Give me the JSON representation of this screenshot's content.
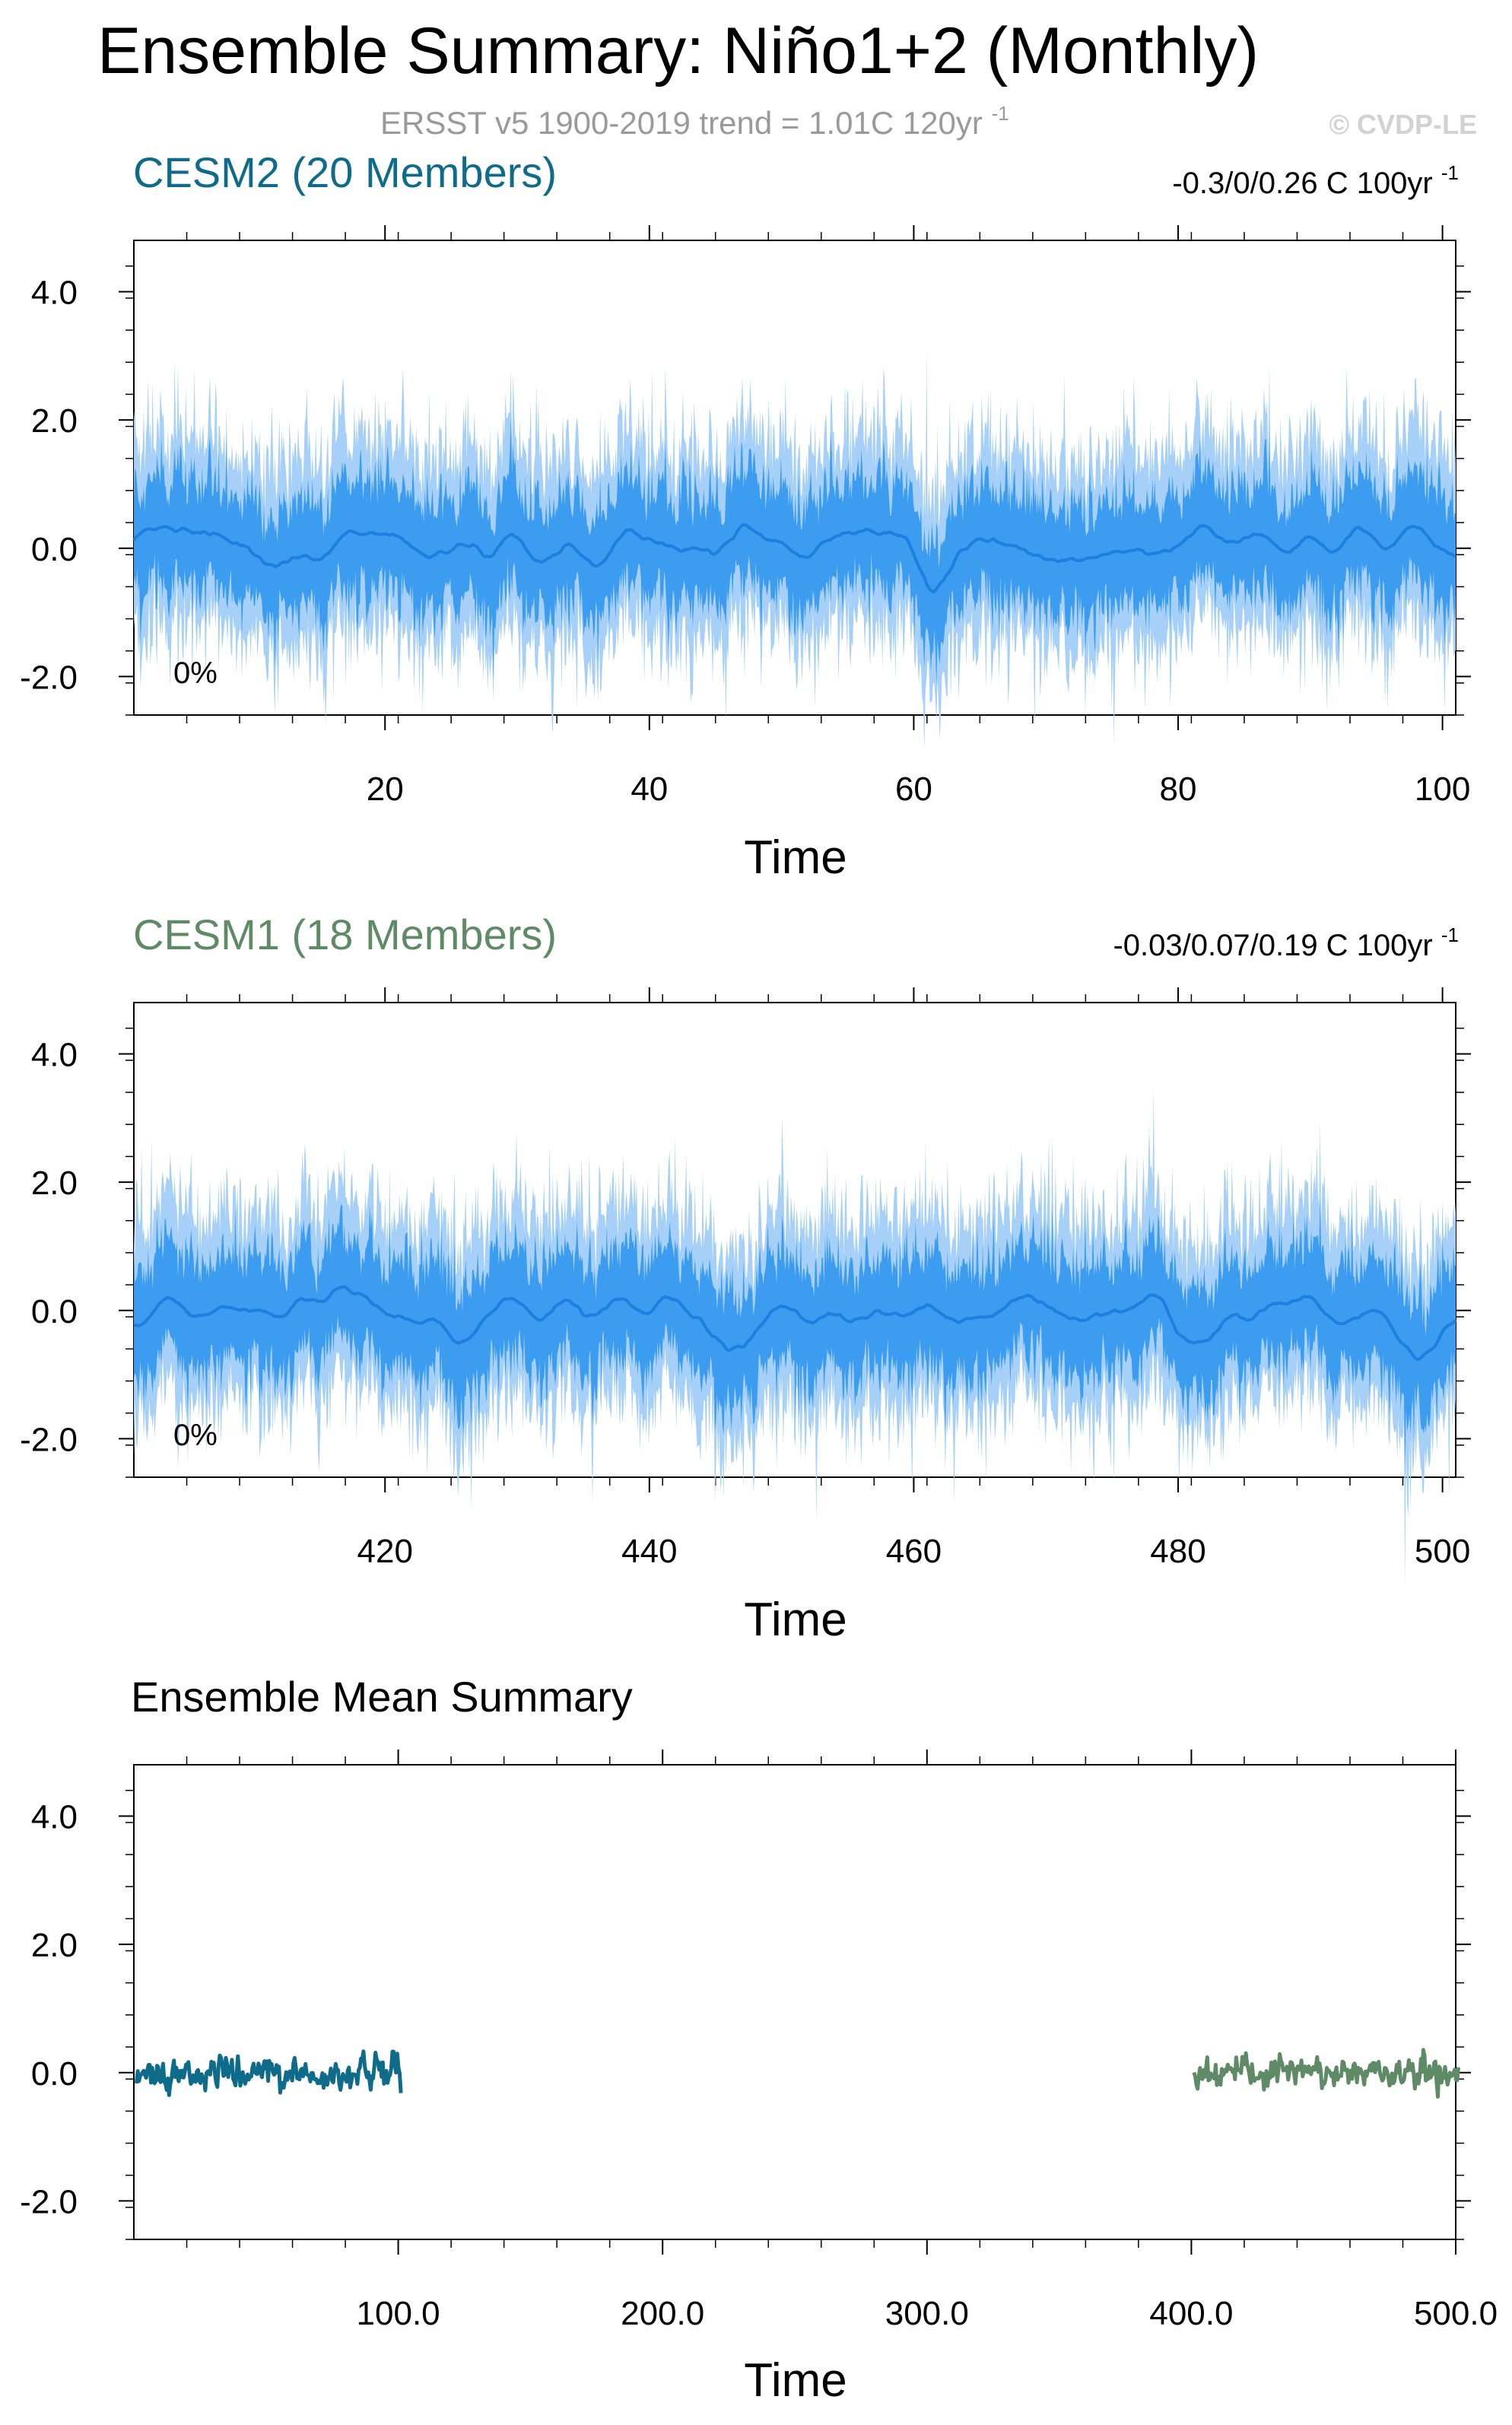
{
  "figure": {
    "title": "Ensemble Summary: Niño1+2 (Monthly)",
    "subtitle_main": "ERSST v5 1900-2019 trend = 1.01C 120yr",
    "subtitle_sup": "-1",
    "watermark": "© CVDP-LE"
  },
  "colors": {
    "band_outer": "#a6d0f7",
    "band_inner": "#3b9cf0",
    "mean_line": "#1e7fe0",
    "cesm2": "#0e6b8a",
    "cesm1": "#5f8a66",
    "axis": "#000000",
    "subtitle": "#9a9a9a",
    "watermark": "#d2d2d2"
  },
  "panels": {
    "p1": {
      "title": "CESM2 (20 Members)",
      "trend_main": "-0.3/0/0.26 C 100yr",
      "trend_sup": "-1",
      "percent": "0%",
      "xlabel": "Time"
    },
    "p2": {
      "title": "CESM1 (18 Members)",
      "trend_main": "-0.03/0.07/0.19 C 100yr",
      "trend_sup": "-1",
      "percent": "0%",
      "xlabel": "Time"
    },
    "p3": {
      "title": "Ensemble Mean Summary",
      "xlabel": "Time"
    }
  },
  "chart_data": [
    {
      "type": "area",
      "title": "CESM2 (20 Members)",
      "xlabel": "Time",
      "ylabel": "",
      "xlim": [
        1,
        101
      ],
      "ylim": [
        -2.6,
        4.8
      ],
      "yticks": [
        "4.0",
        "2.0",
        "0.0",
        "-2.0"
      ],
      "xticks": [
        "20",
        "40",
        "60",
        "80",
        "100"
      ],
      "legend_text": [
        "-0.3/0/0.26 C 100yr-1",
        "0%"
      ],
      "series": [
        {
          "name": "CESM2 (20 Members)",
          "kind": "ensemble-range-and-mean",
          "note_values": "monthly values approx. within -2.5 to 3.1 C; mean near 0.0",
          "approx_max": 3.1,
          "approx_min": -2.5
        }
      ]
    },
    {
      "type": "area",
      "title": "CESM1 (18 Members)",
      "xlabel": "Time",
      "ylabel": "",
      "xlim": [
        401,
        501
      ],
      "ylim": [
        -2.6,
        4.8
      ],
      "yticks": [
        "4.0",
        "2.0",
        "0.0",
        "-2.0"
      ],
      "xticks": [
        "420",
        "440",
        "460",
        "480",
        "500"
      ],
      "legend_text": [
        "-0.03/0.07/0.19 C 100yr-1",
        "0%"
      ],
      "series": [
        {
          "name": "CESM1 (18 Members)",
          "kind": "ensemble-range-and-mean",
          "approx_max": 2.1,
          "approx_min": -1.9
        }
      ]
    },
    {
      "type": "line",
      "title": "Ensemble Mean Summary",
      "xlabel": "Time",
      "ylabel": "",
      "xlim": [
        0,
        500
      ],
      "ylim": [
        -2.6,
        4.8
      ],
      "yticks": [
        "4.0",
        "2.0",
        "0.0",
        "-2.0"
      ],
      "xticks": [
        "100.0",
        "200.0",
        "300.0",
        "400.0",
        "500.0"
      ],
      "series": [
        {
          "name": "CESM2 (20 Members)",
          "x_range": [
            1,
            101
          ],
          "approx_range": [
            -0.5,
            0.55
          ]
        },
        {
          "name": "CESM1 (18 Members)",
          "x_range": [
            401,
            501
          ],
          "approx_range": [
            -0.45,
            0.6
          ]
        }
      ]
    }
  ]
}
